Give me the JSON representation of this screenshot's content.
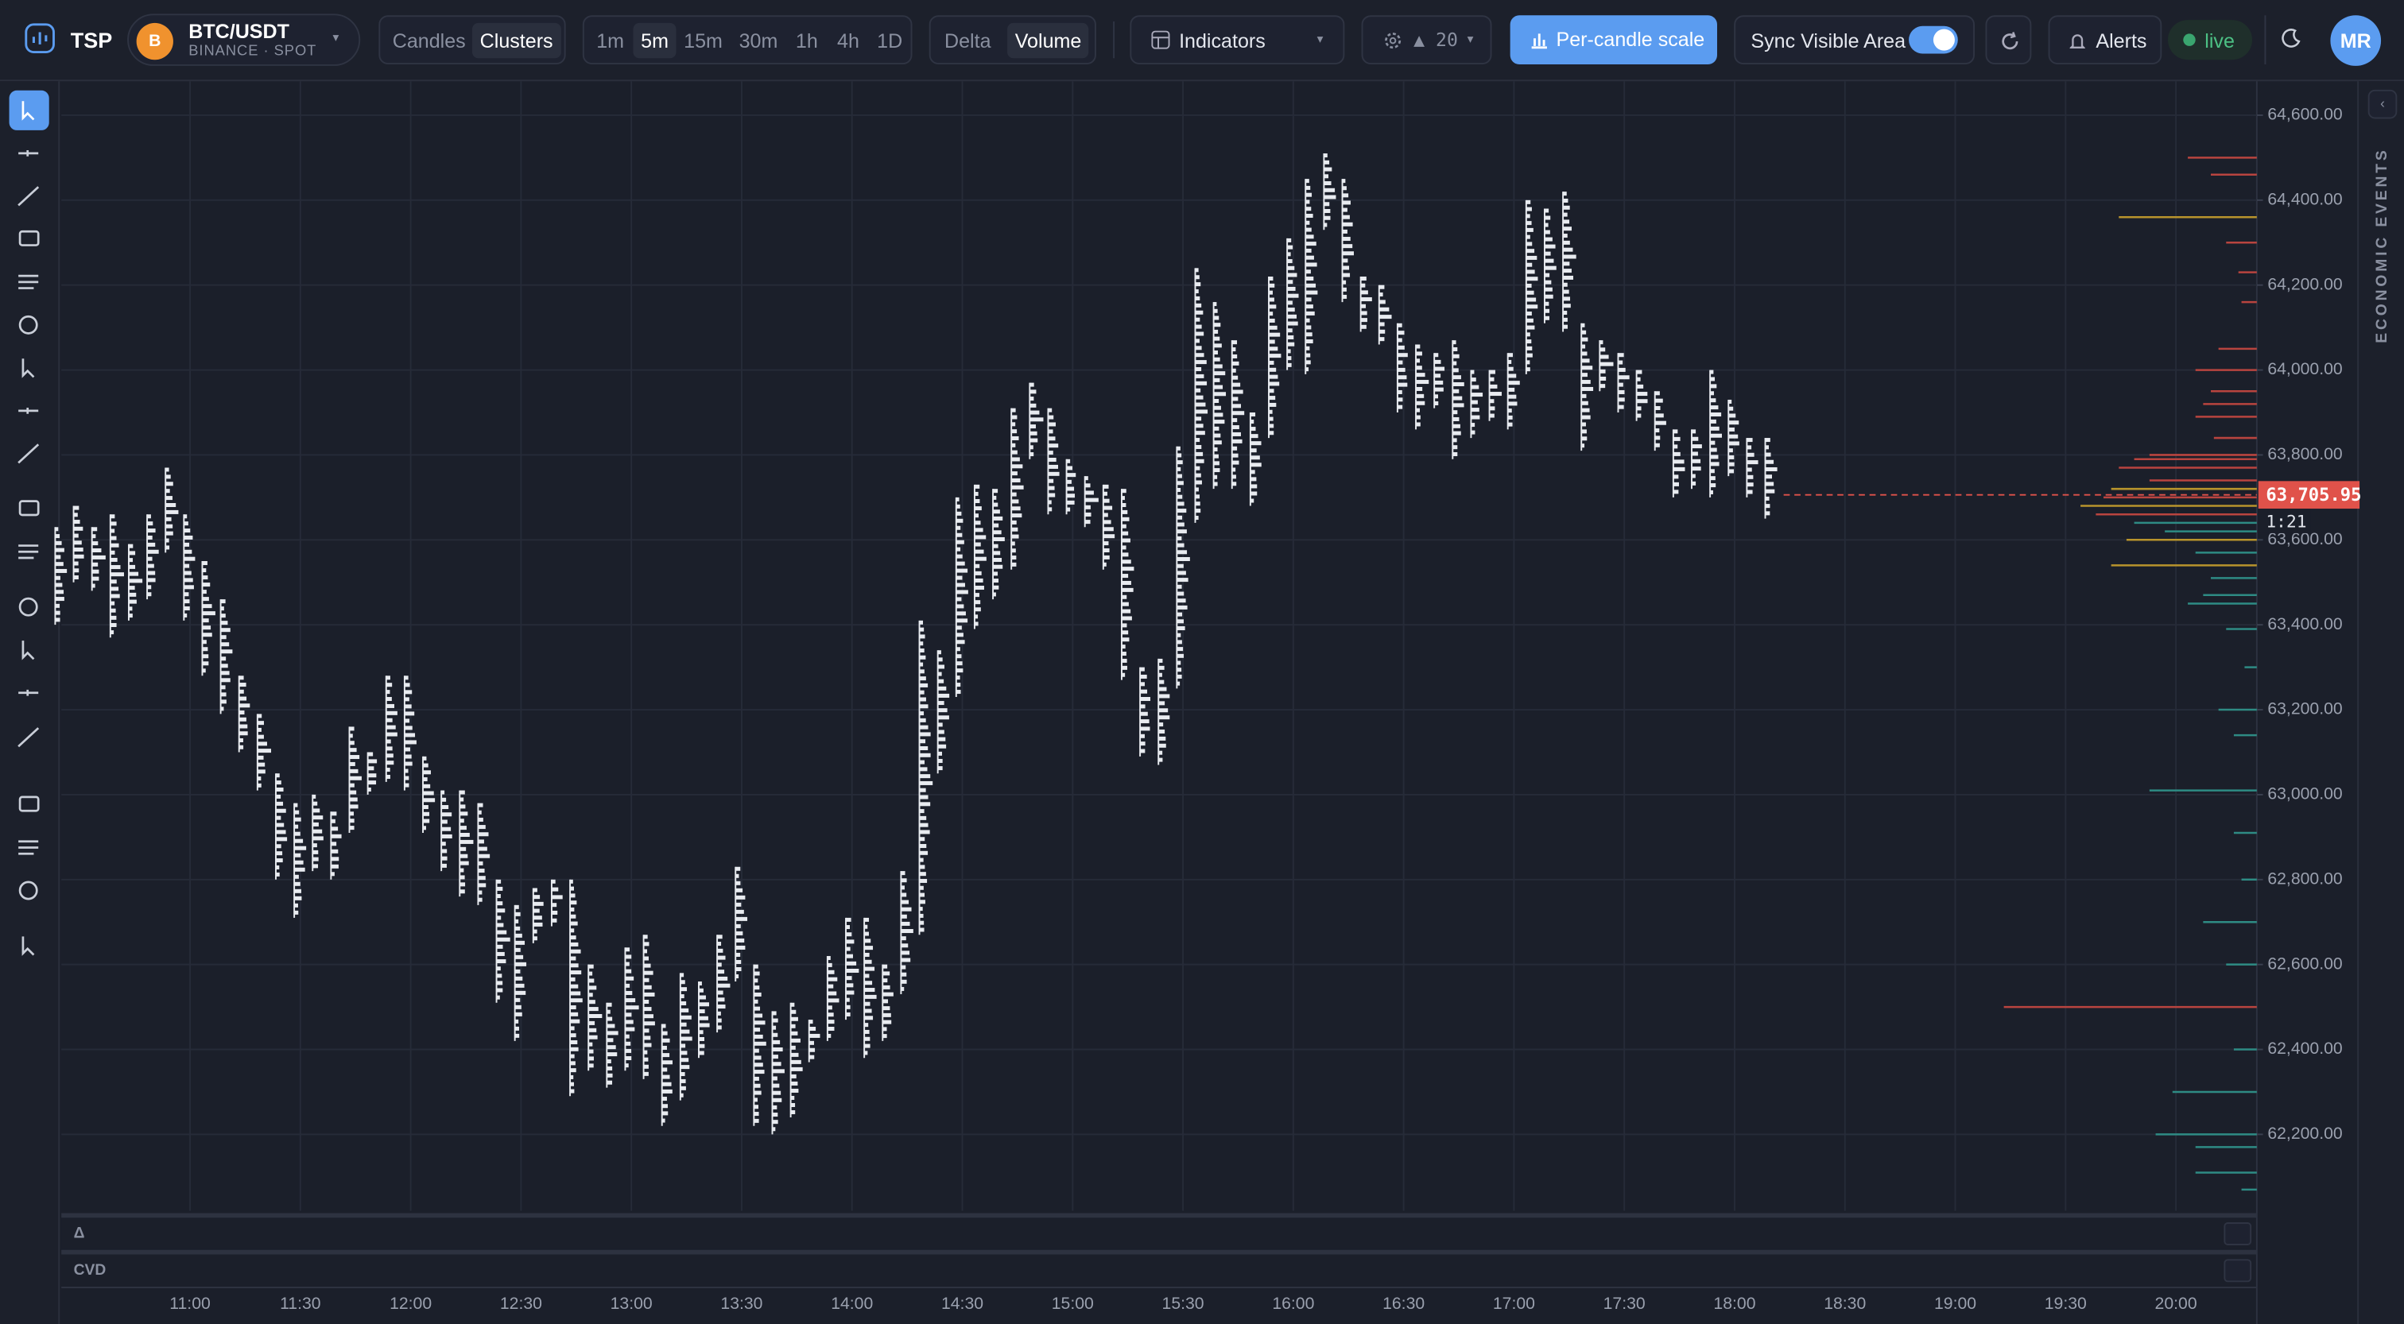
{
  "toolbar": {
    "brand": "TSP",
    "symbol_icon": "B",
    "symbol": "BTC/USDT",
    "exchange": "BINANCE · SPOT",
    "chart_modes": [
      "Candles",
      "Clusters"
    ],
    "active_chart_mode": "Clusters",
    "timeframes": [
      "1m",
      "5m",
      "15m",
      "30m",
      "1h",
      "4h",
      "1D"
    ],
    "active_timeframe": "5m",
    "cluster_modes": [
      "Delta",
      "Volume"
    ],
    "active_cluster_mode": "Volume",
    "indicators": "Indicators",
    "settings": "▲ 20",
    "scale_button": "Per-candle scale",
    "sync": "Sync Visible Area",
    "alerts": "Alerts",
    "status": "live",
    "avatar": "MR"
  },
  "side_panel": "ECONOMIC EVENTS",
  "panes": [
    "Δ",
    "CVD"
  ],
  "chart": {
    "type": "clusters",
    "color": "#e8ebf0",
    "xlim": [
      "10:25",
      "20:22"
    ],
    "x": [
      "10:25",
      "10:30",
      "10:35",
      "10:40",
      "10:45",
      "10:50",
      "10:55",
      "11:00",
      "11:05",
      "11:10",
      "11:15",
      "11:20",
      "11:25",
      "11:30",
      "11:35",
      "11:40",
      "11:45",
      "11:50",
      "11:55",
      "12:00",
      "12:05",
      "12:10",
      "12:15",
      "12:20",
      "12:25",
      "12:30",
      "12:35",
      "12:40",
      "12:45",
      "12:50",
      "12:55",
      "13:00",
      "13:05",
      "13:10",
      "13:15",
      "13:20",
      "13:25",
      "13:30",
      "13:35",
      "13:40",
      "13:45",
      "13:50",
      "13:55",
      "14:00",
      "14:05",
      "14:10",
      "14:15",
      "14:20",
      "14:25",
      "14:30",
      "14:35",
      "14:40",
      "14:45",
      "14:50",
      "14:55",
      "15:00",
      "15:05",
      "15:10",
      "15:15",
      "15:20",
      "15:25",
      "15:30",
      "15:35",
      "15:40",
      "15:45",
      "15:50",
      "15:55",
      "16:00",
      "16:05",
      "16:10",
      "16:15",
      "16:20",
      "16:25",
      "16:30",
      "16:35",
      "16:40",
      "16:45",
      "16:50",
      "16:55",
      "17:00",
      "17:05",
      "17:10",
      "17:15",
      "17:20",
      "17:25",
      "17:30",
      "17:35",
      "17:40",
      "17:45",
      "17:50",
      "17:55",
      "18:00",
      "18:05",
      "18:10"
    ],
    "high": [
      63630,
      63680,
      63630,
      63660,
      63590,
      63660,
      63770,
      63660,
      63550,
      63460,
      63280,
      63190,
      63050,
      62980,
      63000,
      62960,
      63160,
      63100,
      63280,
      63280,
      63090,
      63010,
      63010,
      62980,
      62800,
      62740,
      62780,
      62800,
      62800,
      62600,
      62510,
      62640,
      62670,
      62460,
      62580,
      62560,
      62670,
      62830,
      62600,
      62490,
      62510,
      62470,
      62620,
      62710,
      62710,
      62600,
      62820,
      63410,
      63340,
      63700,
      63730,
      63720,
      63910,
      63970,
      63910,
      63790,
      63750,
      63730,
      63720,
      63300,
      63320,
      63820,
      64240,
      64160,
      64070,
      63900,
      64220,
      64310,
      64450,
      64510,
      64450,
      64220,
      64200,
      64110,
      64060,
      64040,
      64070,
      64000,
      64000,
      64040,
      64400,
      64380,
      64420,
      64110,
      64070,
      64040,
      64000,
      63950,
      63860,
      63860,
      64000,
      63930,
      63840,
      63840
    ],
    "low": [
      63400,
      63500,
      63480,
      63370,
      63410,
      63460,
      63570,
      63410,
      63280,
      63190,
      63100,
      63010,
      62800,
      62710,
      62820,
      62800,
      62910,
      63000,
      63030,
      63010,
      62910,
      62820,
      62760,
      62740,
      62510,
      62420,
      62650,
      62690,
      62290,
      62350,
      62310,
      62350,
      62330,
      62220,
      62280,
      62380,
      62440,
      62560,
      62220,
      62200,
      62240,
      62370,
      62420,
      62470,
      62380,
      62420,
      62530,
      62670,
      63050,
      63230,
      63390,
      63460,
      63530,
      63790,
      63660,
      63660,
      63630,
      63530,
      63270,
      63090,
      63070,
      63250,
      63640,
      63720,
      63720,
      63680,
      63840,
      64000,
      63990,
      64330,
      64160,
      64090,
      64060,
      63900,
      63860,
      63910,
      63790,
      63840,
      63880,
      63860,
      63990,
      64110,
      64090,
      63810,
      63950,
      63900,
      63880,
      63810,
      63700,
      63720,
      63700,
      63750,
      63700,
      63650
    ],
    "ylim": [
      62020,
      64680
    ],
    "yticks": [
      {
        "value": 64600,
        "label": "64,600.00"
      },
      {
        "value": 64400,
        "label": "64,400.00"
      },
      {
        "value": 64200,
        "label": "64,200.00"
      },
      {
        "value": 64000,
        "label": "64,000.00"
      },
      {
        "value": 63800,
        "label": "63,800.00"
      },
      {
        "value": 63600,
        "label": "63,600.00"
      },
      {
        "value": 63400,
        "label": "63,400.00"
      },
      {
        "value": 63200,
        "label": "63,200.00"
      },
      {
        "value": 63000,
        "label": "63,000.00"
      },
      {
        "value": 62800,
        "label": "62,800.00"
      },
      {
        "value": 62600,
        "label": "62,600.00"
      },
      {
        "value": 62400,
        "label": "62,400.00"
      },
      {
        "value": 62200,
        "label": "62,200.00"
      }
    ],
    "xticks": [
      "11:00",
      "11:30",
      "12:00",
      "12:30",
      "13:00",
      "13:30",
      "14:00",
      "14:30",
      "15:00",
      "15:30",
      "16:00",
      "16:30",
      "17:00",
      "17:30",
      "18:00",
      "18:30",
      "19:00",
      "19:30",
      "20:00"
    ],
    "grid": true,
    "last_price": {
      "value": 63705.95,
      "label": "63,705.95"
    },
    "last_price_color": "#e0524a",
    "countdown": "1:21",
    "volume_profile": {
      "xlim": [
        0,
        170
      ],
      "prices": [
        64500,
        64460,
        64360,
        64300,
        64230,
        64160,
        64050,
        64000,
        63950,
        63920,
        63890,
        63840,
        63800,
        63790,
        63770,
        63740,
        63720,
        63700,
        63680,
        63660,
        63640,
        63620,
        63600,
        63570,
        63540,
        63510,
        63470,
        63450,
        63390,
        63300,
        63200,
        63140,
        63010,
        62910,
        62800,
        62700,
        62600,
        62500,
        62400,
        62300,
        62200,
        62170,
        62110,
        62070
      ],
      "volumes": [
        45,
        30,
        90,
        20,
        12,
        10,
        25,
        40,
        30,
        35,
        40,
        28,
        70,
        80,
        90,
        70,
        95,
        100,
        115,
        105,
        80,
        60,
        85,
        40,
        95,
        30,
        35,
        45,
        20,
        8,
        25,
        15,
        70,
        15,
        10,
        35,
        20,
        165,
        15,
        55,
        66,
        40,
        40,
        10
      ],
      "colors": [
        "#b9443f",
        "#b9443f",
        "#b8942c",
        "#b9443f",
        "#b9443f",
        "#b9443f",
        "#b9443f",
        "#b9443f",
        "#b9443f",
        "#b9443f",
        "#b9443f",
        "#b9443f",
        "#b9443f",
        "#b9443f",
        "#b9443f",
        "#b9443f",
        "#b8942c",
        "#b9443f",
        "#b8942c",
        "#b9443f",
        "#2e8b84",
        "#2e8b84",
        "#b8942c",
        "#2e8b84",
        "#b8942c",
        "#2e8b84",
        "#2e8b84",
        "#2e8b84",
        "#2e8b84",
        "#2e8b84",
        "#2e8b84",
        "#2e8b84",
        "#2e8b84",
        "#2e8b84",
        "#2e8b84",
        "#2e8b84",
        "#2e8b84",
        "#b9443f",
        "#2e8b84",
        "#2e8b84",
        "#2e8b84",
        "#2e8b84",
        "#2e8b84",
        "#2e8b84"
      ]
    }
  }
}
